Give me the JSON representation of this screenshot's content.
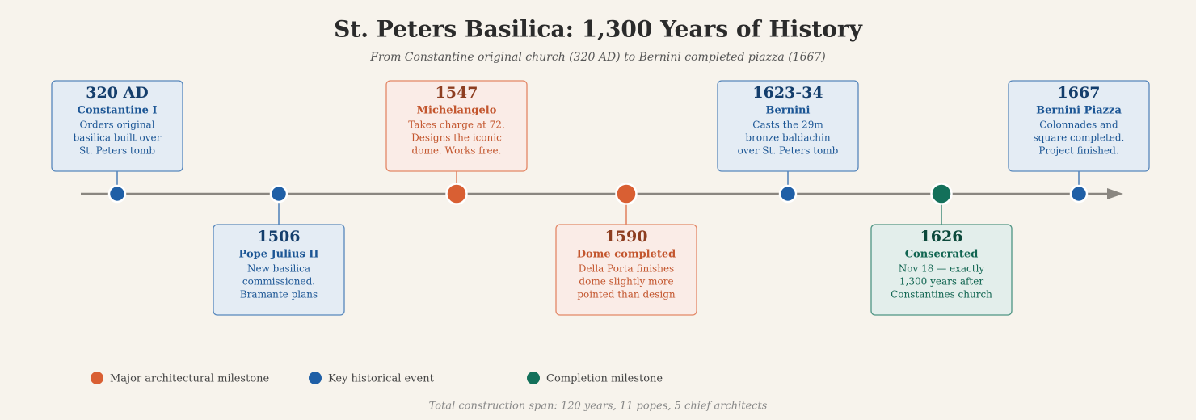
{
  "header": {
    "title": "St. Peters Basilica: 1,300 Years of History",
    "subtitle": "From Constantine original church (320 AD) to Bernini completed piazza (1667)"
  },
  "events": [
    {
      "date": "320 AD",
      "title": "Constantine I",
      "lines": [
        "Orders original",
        "basilica built over",
        "St. Peters tomb"
      ],
      "color": "#1f5fa6"
    },
    {
      "date": "1506",
      "title": "Pope Julius II",
      "lines": [
        "New basilica",
        "commissioned.",
        "Bramante plans"
      ],
      "color": "#1f5fa6"
    },
    {
      "date": "1547",
      "title": "Michelangelo",
      "lines": [
        "Takes charge at 72.",
        "Designs the iconic",
        "dome. Works free."
      ],
      "color": "#d95f33"
    },
    {
      "date": "1590",
      "title": "Dome completed",
      "lines": [
        "Della Porta finishes",
        "dome slightly more",
        "pointed than design"
      ],
      "color": "#d95f33"
    },
    {
      "date": "1623-34",
      "title": "Bernini",
      "lines": [
        "Casts the 29m",
        "bronze baldachin",
        "over St. Peters tomb"
      ],
      "color": "#1f5fa6"
    },
    {
      "date": "1626",
      "title": "Consecrated",
      "lines": [
        "Nov 18 — exactly",
        "1,300 years after",
        "Constantines church"
      ],
      "color": "#13705a"
    },
    {
      "date": "1667",
      "title": "Bernini Piazza",
      "lines": [
        "Colonnades and",
        "square completed.",
        "Project finished."
      ],
      "color": "#1f5fa6"
    }
  ],
  "legend": [
    {
      "label": "Major architectural milestone",
      "color": "#d95f33"
    },
    {
      "label": "Key historical event",
      "color": "#1f5fa6"
    },
    {
      "label": "Completion milestone",
      "color": "#13705a"
    }
  ],
  "footer": "Total construction span: 120 years, 11 popes, 5 chief architects"
}
